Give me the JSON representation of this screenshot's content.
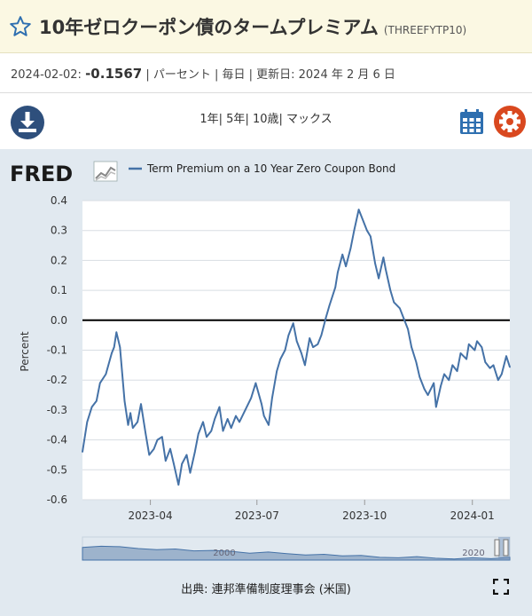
{
  "header": {
    "star_icon": "star-outline-icon",
    "title": "10年ゼロクーポン債のタームプレミアム",
    "series_id": "(THREEFYTP10)"
  },
  "meta": {
    "date": "2024-02-02:",
    "value": "-0.1567",
    "rest": "| パーセント | 毎日 | 更新日: 2024 年 2 月 6 日"
  },
  "toolbar": {
    "download_icon": "download-icon",
    "range_1y": "1年",
    "range_5y": "5年",
    "range_10y": "10歳",
    "range_max": "マックス",
    "calendar_icon": "calendar-icon",
    "settings_icon": "gear-icon"
  },
  "footer": {
    "source": "出典: 連邦準備制度理事会 (米国)",
    "fullscreen_icon": "fullscreen-icon"
  },
  "colors": {
    "series": "#4572a7",
    "panel_bg": "#e1e9f0",
    "gear": "#d9481f",
    "icon_blue": "#2e4f7c",
    "title_bg": "#fbf8e3"
  },
  "chart_data": {
    "type": "line",
    "logo": "FRED",
    "legend": "Term Premium on a 10 Year Zero Coupon Bond",
    "ylabel": "Percent",
    "ylim": [
      -0.6,
      0.4
    ],
    "yticks": [
      "0.4",
      "0.3",
      "0.2",
      "0.1",
      "0.0",
      "-0.1",
      "-0.2",
      "-0.3",
      "-0.4",
      "-0.5",
      "-0.6"
    ],
    "xticks": [
      "2023-04",
      "2023-07",
      "2023-10",
      "2024-01"
    ],
    "navigator_labels": [
      "2000",
      "2020"
    ],
    "x_start": "2023-02-02",
    "x_end": "2024-02-02",
    "series": [
      {
        "name": "Term Premium on a 10 Year Zero Coupon Bond",
        "x": [
          "2023-02-02",
          "2023-02-06",
          "2023-02-10",
          "2023-02-14",
          "2023-02-17",
          "2023-02-22",
          "2023-02-27",
          "2023-03-01",
          "2023-03-03",
          "2023-03-06",
          "2023-03-08",
          "2023-03-10",
          "2023-03-13",
          "2023-03-15",
          "2023-03-17",
          "2023-03-21",
          "2023-03-24",
          "2023-03-28",
          "2023-03-31",
          "2023-04-04",
          "2023-04-07",
          "2023-04-11",
          "2023-04-14",
          "2023-04-18",
          "2023-04-21",
          "2023-04-25",
          "2023-04-28",
          "2023-05-02",
          "2023-05-05",
          "2023-05-09",
          "2023-05-12",
          "2023-05-16",
          "2023-05-19",
          "2023-05-23",
          "2023-05-26",
          "2023-05-30",
          "2023-06-02",
          "2023-06-06",
          "2023-06-09",
          "2023-06-13",
          "2023-06-16",
          "2023-06-21",
          "2023-06-26",
          "2023-06-30",
          "2023-07-05",
          "2023-07-07",
          "2023-07-11",
          "2023-07-14",
          "2023-07-18",
          "2023-07-21",
          "2023-07-25",
          "2023-07-28",
          "2023-08-01",
          "2023-08-04",
          "2023-08-08",
          "2023-08-11",
          "2023-08-15",
          "2023-08-18",
          "2023-08-22",
          "2023-08-25",
          "2023-08-29",
          "2023-09-01",
          "2023-09-06",
          "2023-09-08",
          "2023-09-12",
          "2023-09-15",
          "2023-09-19",
          "2023-09-22",
          "2023-09-26",
          "2023-09-29",
          "2023-10-03",
          "2023-10-06",
          "2023-10-10",
          "2023-10-13",
          "2023-10-17",
          "2023-10-19",
          "2023-10-23",
          "2023-10-26",
          "2023-10-31",
          "2023-11-03",
          "2023-11-07",
          "2023-11-10",
          "2023-11-14",
          "2023-11-17",
          "2023-11-21",
          "2023-11-24",
          "2023-11-29",
          "2023-12-01",
          "2023-12-05",
          "2023-12-08",
          "2023-12-12",
          "2023-12-15",
          "2023-12-19",
          "2023-12-22",
          "2023-12-27",
          "2023-12-29",
          "2024-01-03",
          "2024-01-05",
          "2024-01-09",
          "2024-01-12",
          "2024-01-16",
          "2024-01-19",
          "2024-01-23",
          "2024-01-26",
          "2024-01-30",
          "2024-02-02"
        ],
        "values": [
          -0.44,
          -0.34,
          -0.29,
          -0.27,
          -0.21,
          -0.18,
          -0.11,
          -0.09,
          -0.04,
          -0.09,
          -0.18,
          -0.27,
          -0.35,
          -0.31,
          -0.36,
          -0.34,
          -0.28,
          -0.38,
          -0.45,
          -0.43,
          -0.4,
          -0.39,
          -0.47,
          -0.43,
          -0.48,
          -0.55,
          -0.48,
          -0.45,
          -0.51,
          -0.44,
          -0.38,
          -0.34,
          -0.39,
          -0.37,
          -0.33,
          -0.29,
          -0.37,
          -0.33,
          -0.36,
          -0.32,
          -0.34,
          -0.3,
          -0.26,
          -0.21,
          -0.28,
          -0.32,
          -0.35,
          -0.26,
          -0.17,
          -0.13,
          -0.1,
          -0.05,
          -0.01,
          -0.07,
          -0.11,
          -0.15,
          -0.06,
          -0.09,
          -0.08,
          -0.05,
          0.01,
          0.05,
          0.11,
          0.16,
          0.22,
          0.18,
          0.24,
          0.3,
          0.37,
          0.34,
          0.3,
          0.28,
          0.19,
          0.14,
          0.21,
          0.17,
          0.1,
          0.06,
          0.04,
          0.01,
          -0.03,
          -0.09,
          -0.14,
          -0.19,
          -0.23,
          -0.25,
          -0.21,
          -0.29,
          -0.22,
          -0.18,
          -0.2,
          -0.15,
          -0.17,
          -0.11,
          -0.13,
          -0.08,
          -0.1,
          -0.07,
          -0.09,
          -0.14,
          -0.16,
          -0.15,
          -0.2,
          -0.18,
          -0.12,
          -0.1567
        ]
      }
    ],
    "navigator_profile": [
      0.55,
      0.6,
      0.58,
      0.5,
      0.45,
      0.48,
      0.4,
      0.42,
      0.38,
      0.3,
      0.35,
      0.28,
      0.22,
      0.25,
      0.18,
      0.2,
      0.12,
      0.1,
      0.15,
      0.08,
      0.05,
      0.1,
      0.06,
      0.12
    ]
  }
}
